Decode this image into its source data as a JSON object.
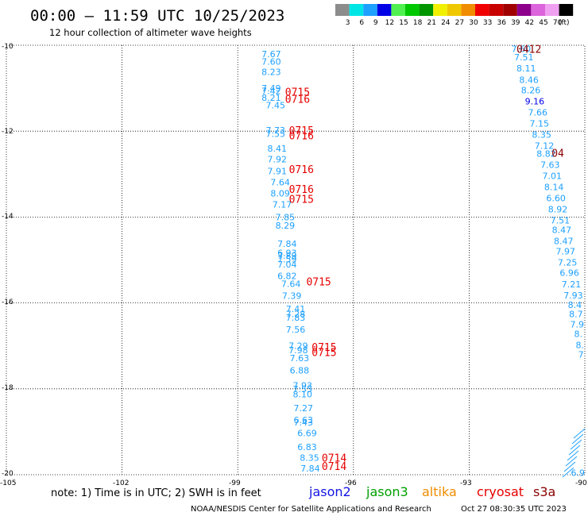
{
  "header": {
    "title": "00:00 – 11:59 UTC 10/25/2023",
    "subtitle": "12 hour collection of altimeter wave heights"
  },
  "legend": {
    "unit": "(ft)",
    "items": [
      {
        "label": "3",
        "color": "#8c8c8c"
      },
      {
        "label": "6",
        "color": "#00e6e6"
      },
      {
        "label": "9",
        "color": "#1ea0ff"
      },
      {
        "label": "12",
        "color": "#0000e6"
      },
      {
        "label": "15",
        "color": "#50f050"
      },
      {
        "label": "18",
        "color": "#00c800"
      },
      {
        "label": "21",
        "color": "#009600"
      },
      {
        "label": "24",
        "color": "#f0f000"
      },
      {
        "label": "27",
        "color": "#f0c800"
      },
      {
        "label": "30",
        "color": "#f08c00"
      },
      {
        "label": "33",
        "color": "#f00000"
      },
      {
        "label": "36",
        "color": "#c80000"
      },
      {
        "label": "39",
        "color": "#a00000"
      },
      {
        "label": "42",
        "color": "#8c008c"
      },
      {
        "label": "45",
        "color": "#dc64dc"
      },
      {
        "label": "70",
        "color": "#f0a0f0"
      },
      {
        "label": "",
        "color": "#000000"
      }
    ]
  },
  "axes": {
    "lat_labels": [
      "-10",
      "-12",
      "-14",
      "-16",
      "-18",
      "-20"
    ],
    "lon_labels": [
      "-105",
      "-102",
      "-99",
      "-96",
      "-93",
      "-90"
    ]
  },
  "footer": {
    "note": "note: 1) Time is in UTC; 2) SWH is in feet",
    "satellites": [
      {
        "name": "jason2",
        "color": "#1414e6"
      },
      {
        "name": "jason3",
        "color": "#00a000"
      },
      {
        "name": "altika",
        "color": "#f08c00"
      },
      {
        "name": "cryosat",
        "color": "#e60000"
      },
      {
        "name": "s3a",
        "color": "#8b0000"
      }
    ],
    "credit": "NOAA/NESDIS Center for Satellite Applications and Research",
    "timestamp": "Oct 27 08:30:35 UTC 2023"
  },
  "colors": {
    "swh_label": "#1ea0ff",
    "swh_highlight": "#0000e6",
    "cryosat": "#e60000",
    "s3a": "#8b0000",
    "grid": "#000000"
  },
  "map": {
    "lon_range": [
      -105,
      -90
    ],
    "lat_range": [
      -20,
      -10
    ]
  },
  "tracks": [
    {
      "name": "west-track",
      "points": [
        {
          "lon": -98.13,
          "lat": -10.2,
          "swh": "7.67"
        },
        {
          "lon": -98.13,
          "lat": -10.38,
          "swh": "7.60"
        },
        {
          "lon": -98.13,
          "lat": -10.62,
          "swh": "8.23"
        },
        {
          "lon": -98.13,
          "lat": -11.0,
          "swh": "7.49"
        },
        {
          "lon": -98.13,
          "lat": -11.06,
          "swh": "7.42"
        },
        {
          "lon": -98.13,
          "lat": -11.22,
          "swh": "8.21"
        },
        {
          "lon": -98.02,
          "lat": -11.4,
          "swh": "7.45"
        },
        {
          "lon": -98.02,
          "lat": -11.98,
          "swh": "7.73"
        },
        {
          "lon": -98.02,
          "lat": -12.06,
          "swh": "7.55"
        },
        {
          "lon": -97.98,
          "lat": -12.4,
          "swh": "8.41"
        },
        {
          "lon": -97.98,
          "lat": -12.65,
          "swh": "7.92"
        },
        {
          "lon": -97.98,
          "lat": -12.93,
          "swh": "7.91"
        },
        {
          "lon": -97.9,
          "lat": -13.19,
          "swh": "7.64"
        },
        {
          "lon": -97.9,
          "lat": -13.45,
          "swh": "8.09"
        },
        {
          "lon": -97.85,
          "lat": -13.71,
          "swh": "7.17"
        },
        {
          "lon": -97.77,
          "lat": -14.0,
          "swh": "7.85"
        },
        {
          "lon": -97.77,
          "lat": -14.2,
          "swh": "8.29"
        },
        {
          "lon": -97.72,
          "lat": -14.62,
          "swh": "7.84"
        },
        {
          "lon": -97.72,
          "lat": -14.83,
          "swh": "6.93"
        },
        {
          "lon": -97.72,
          "lat": -14.9,
          "swh": "7.89"
        },
        {
          "lon": -97.72,
          "lat": -14.98,
          "swh": "7.59"
        },
        {
          "lon": -97.72,
          "lat": -15.1,
          "swh": "7.04"
        },
        {
          "lon": -97.72,
          "lat": -15.37,
          "swh": "6.82"
        },
        {
          "lon": -97.62,
          "lat": -15.55,
          "swh": "7.64"
        },
        {
          "lon": -97.6,
          "lat": -15.83,
          "swh": "7.39"
        },
        {
          "lon": -97.5,
          "lat": -16.14,
          "swh": "7.41"
        },
        {
          "lon": -97.5,
          "lat": -16.26,
          "swh": "7.28"
        },
        {
          "lon": -97.5,
          "lat": -16.34,
          "swh": "7.83"
        },
        {
          "lon": -97.5,
          "lat": -16.62,
          "swh": "7.56"
        },
        {
          "lon": -97.43,
          "lat": -17.0,
          "swh": "7.29"
        },
        {
          "lon": -97.43,
          "lat": -17.1,
          "swh": "7.98"
        },
        {
          "lon": -97.4,
          "lat": -17.28,
          "swh": "7.63"
        },
        {
          "lon": -97.4,
          "lat": -17.57,
          "swh": "6.88"
        },
        {
          "lon": -97.32,
          "lat": -17.92,
          "swh": "7.93"
        },
        {
          "lon": -97.32,
          "lat": -18.0,
          "swh": "7.55"
        },
        {
          "lon": -97.32,
          "lat": -18.12,
          "swh": "8.10"
        },
        {
          "lon": -97.3,
          "lat": -18.45,
          "swh": "7.27"
        },
        {
          "lon": -97.3,
          "lat": -18.72,
          "swh": "6.63"
        },
        {
          "lon": -97.3,
          "lat": -18.78,
          "swh": "7.43"
        },
        {
          "lon": -97.2,
          "lat": -19.03,
          "swh": "6.69"
        },
        {
          "lon": -97.2,
          "lat": -19.35,
          "swh": "6.83"
        },
        {
          "lon": -97.14,
          "lat": -19.6,
          "swh": "8.35"
        },
        {
          "lon": -97.12,
          "lat": -19.85,
          "swh": "7.84"
        }
      ],
      "times": [
        {
          "lon": -97.45,
          "lat": -11.08,
          "label": "0715"
        },
        {
          "lon": -97.45,
          "lat": -11.25,
          "label": "0716"
        },
        {
          "lon": -97.35,
          "lat": -11.98,
          "label": "0715"
        },
        {
          "lon": -97.35,
          "lat": -12.1,
          "label": "0716"
        },
        {
          "lon": -97.35,
          "lat": -12.88,
          "label": "0716"
        },
        {
          "lon": -97.35,
          "lat": -13.35,
          "label": "0716"
        },
        {
          "lon": -97.35,
          "lat": -13.58,
          "label": "0715"
        },
        {
          "lon": -96.9,
          "lat": -15.5,
          "label": "0715"
        },
        {
          "lon": -96.76,
          "lat": -17.02,
          "label": "0715"
        },
        {
          "lon": -96.76,
          "lat": -17.14,
          "label": "0715"
        },
        {
          "lon": -96.5,
          "lat": -19.6,
          "label": "0714"
        },
        {
          "lon": -96.5,
          "lat": -19.8,
          "label": "0714"
        }
      ]
    },
    {
      "name": "east-track",
      "points": [
        {
          "lon": -91.65,
          "lat": -10.08,
          "swh": "7.60"
        },
        {
          "lon": -91.58,
          "lat": -10.28,
          "swh": "7.51"
        },
        {
          "lon": -91.52,
          "lat": -10.54,
          "swh": "8.11"
        },
        {
          "lon": -91.45,
          "lat": -10.8,
          "swh": "8.46"
        },
        {
          "lon": -91.4,
          "lat": -11.04,
          "swh": "8.26"
        },
        {
          "lon": -91.3,
          "lat": -11.3,
          "swh": "9.16",
          "highlight": true
        },
        {
          "lon": -91.22,
          "lat": -11.56,
          "swh": "7.66"
        },
        {
          "lon": -91.18,
          "lat": -11.82,
          "swh": "7.15"
        },
        {
          "lon": -91.12,
          "lat": -12.08,
          "swh": "8.35"
        },
        {
          "lon": -91.05,
          "lat": -12.34,
          "swh": "7.12"
        },
        {
          "lon": -91.0,
          "lat": -12.52,
          "swh": "8.82"
        },
        {
          "lon": -90.9,
          "lat": -12.78,
          "swh": "7.63"
        },
        {
          "lon": -90.85,
          "lat": -13.04,
          "swh": "7.01"
        },
        {
          "lon": -90.8,
          "lat": -13.3,
          "swh": "8.14"
        },
        {
          "lon": -90.75,
          "lat": -13.56,
          "swh": "6.60"
        },
        {
          "lon": -90.7,
          "lat": -13.82,
          "swh": "8.92"
        },
        {
          "lon": -90.64,
          "lat": -14.08,
          "swh": "7.51"
        },
        {
          "lon": -90.6,
          "lat": -14.3,
          "swh": "8.47"
        },
        {
          "lon": -90.55,
          "lat": -14.56,
          "swh": "8.47"
        },
        {
          "lon": -90.5,
          "lat": -14.8,
          "swh": "7.97"
        },
        {
          "lon": -90.45,
          "lat": -15.06,
          "swh": "7.25"
        },
        {
          "lon": -90.4,
          "lat": -15.3,
          "swh": "6.96"
        },
        {
          "lon": -90.35,
          "lat": -15.56,
          "swh": "7.21"
        },
        {
          "lon": -90.3,
          "lat": -15.82,
          "swh": "7.93"
        },
        {
          "lon": -90.26,
          "lat": -16.04,
          "swh": "8.4"
        },
        {
          "lon": -90.23,
          "lat": -16.26,
          "swh": "8.7"
        },
        {
          "lon": -90.2,
          "lat": -16.5,
          "swh": "7.9"
        },
        {
          "lon": -90.17,
          "lat": -16.72,
          "swh": "8."
        },
        {
          "lon": -90.13,
          "lat": -16.98,
          "swh": "8."
        },
        {
          "lon": -90.1,
          "lat": -17.2,
          "swh": "7"
        }
      ],
      "times": [
        {
          "lon": -91.45,
          "lat": -10.08,
          "label": "0412"
        },
        {
          "lon": -90.7,
          "lat": -12.5,
          "label": "04"
        }
      ]
    },
    {
      "name": "southeast-fragment",
      "points": [
        {
          "lon": -90.18,
          "lat": -19.95,
          "swh": "6.9"
        }
      ],
      "times": []
    }
  ]
}
